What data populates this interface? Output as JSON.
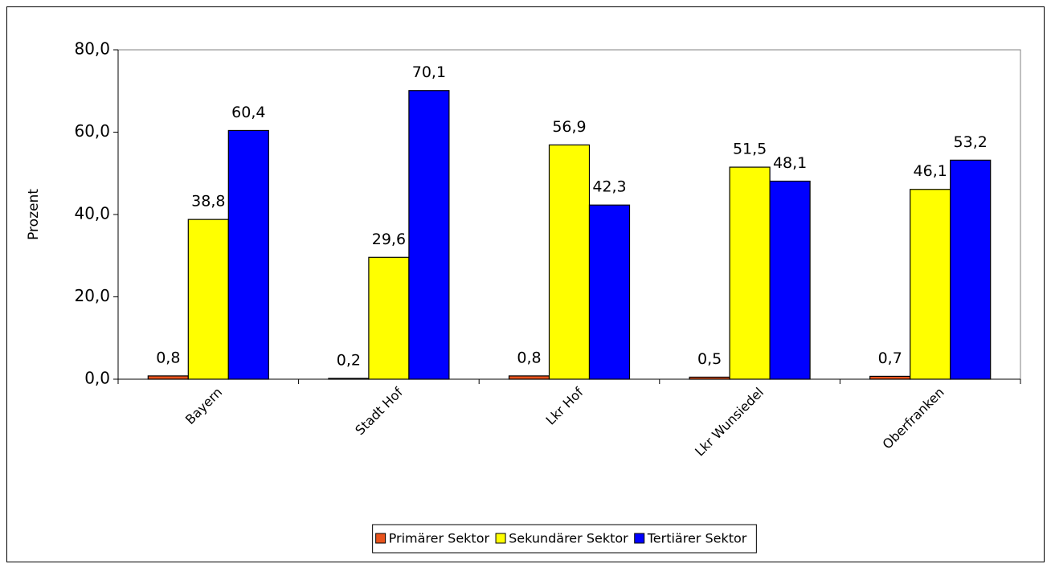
{
  "chart_data": {
    "type": "bar",
    "y_label": "Prozent",
    "categories": [
      "Bayern",
      "Stadt Hof",
      "Lkr Hof",
      "Lkr Wunsiedel",
      "Oberfranken"
    ],
    "series": [
      {
        "name": "Primärer Sektor",
        "color": "#e8531c",
        "values": [
          0.8,
          0.2,
          0.8,
          0.5,
          0.7
        ],
        "value_labels": [
          "0,8",
          "0,2",
          "0,8",
          "0,5",
          "0,7"
        ]
      },
      {
        "name": "Sekundärer Sektor",
        "color": "#ffff00",
        "values": [
          38.8,
          29.6,
          56.9,
          51.5,
          46.1
        ],
        "value_labels": [
          "38,8",
          "29,6",
          "56,9",
          "51,5",
          "46,1"
        ]
      },
      {
        "name": "Tertiärer Sektor",
        "color": "#0000ff",
        "values": [
          60.4,
          70.1,
          42.3,
          48.1,
          53.2
        ],
        "value_labels": [
          "60,4",
          "70,1",
          "42,3",
          "48,1",
          "53,2"
        ]
      }
    ],
    "ylim": [
      0,
      80
    ],
    "yticks": [
      {
        "value": 0,
        "label": "0,0"
      },
      {
        "value": 20,
        "label": "20,0"
      },
      {
        "value": 40,
        "label": "40,0"
      },
      {
        "value": 60,
        "label": "60,0"
      },
      {
        "value": 80,
        "label": "80,0"
      }
    ],
    "legend": "bottom"
  }
}
